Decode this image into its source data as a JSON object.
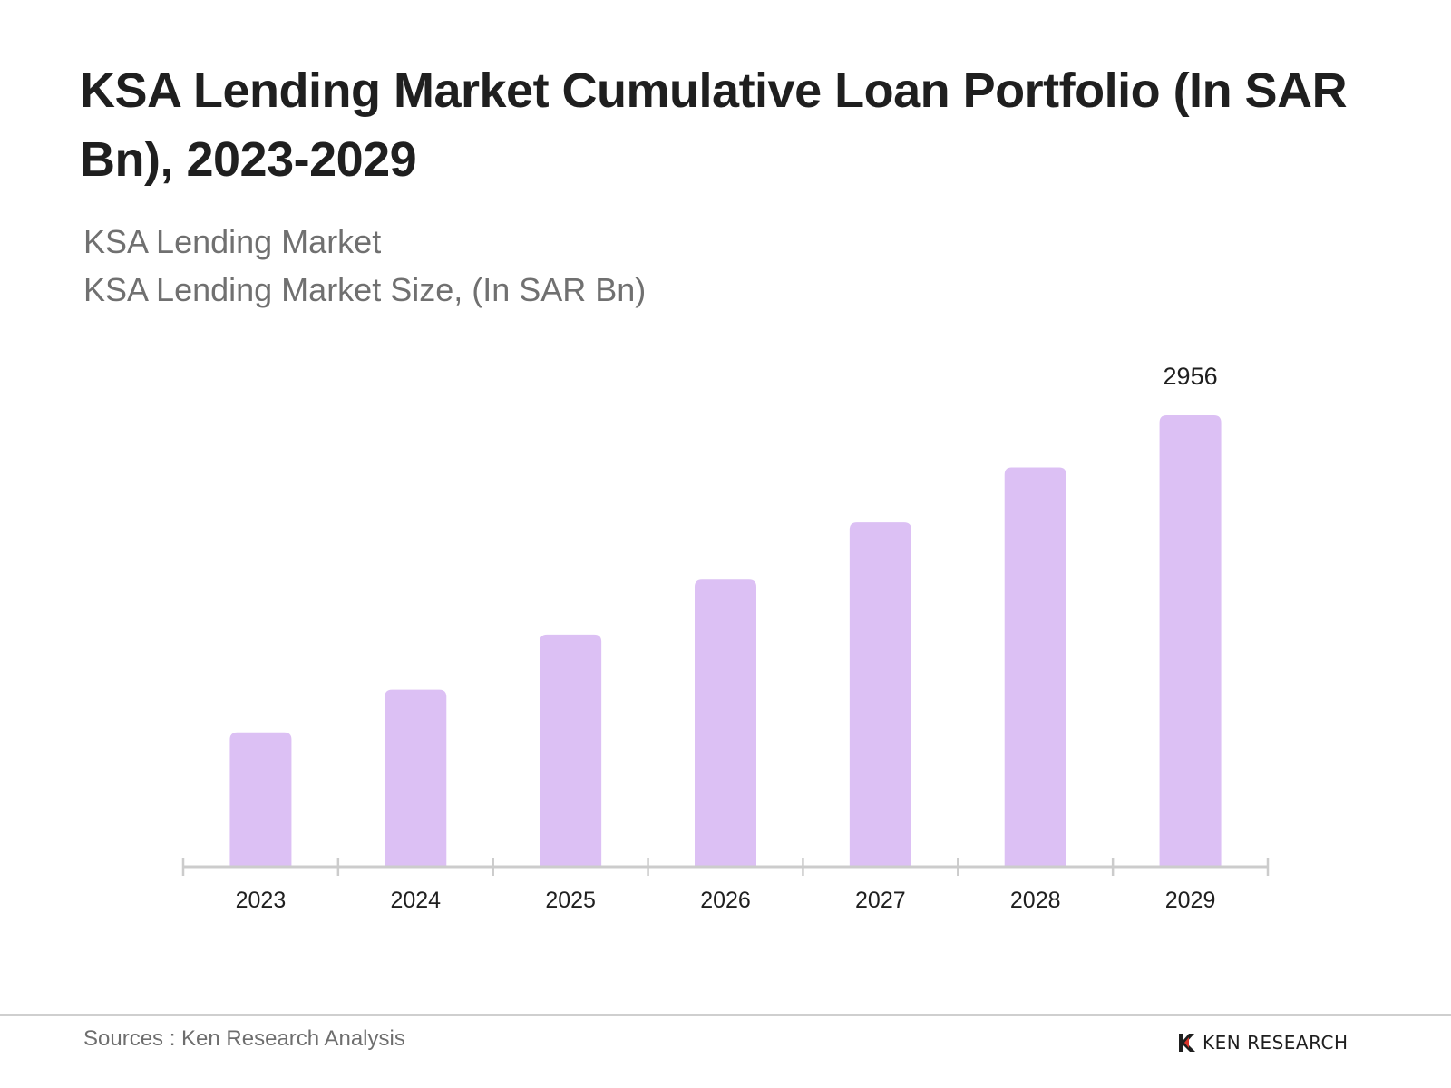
{
  "title": "KSA Lending Market Cumulative Loan Portfolio (In SAR Bn), 2023-2029",
  "subtitle_line1": "KSA Lending Market",
  "subtitle_line2": "KSA Lending Market Size, (In SAR Bn)",
  "source": "Sources : Ken Research Analysis",
  "brand": "KEN RESEARCH",
  "colors": {
    "bar": "#dcc0f4",
    "axis": "#cccccc",
    "text": "#1f1f1f"
  },
  "chart_data": {
    "type": "bar",
    "categories": [
      "2023",
      "2024",
      "2025",
      "2026",
      "2027",
      "2028",
      "2029"
    ],
    "values": [
      880,
      1160,
      1520,
      1880,
      2255,
      2615,
      2956
    ],
    "data_labels": [
      null,
      null,
      null,
      null,
      null,
      null,
      "2956"
    ],
    "xlabel": "",
    "ylabel": "",
    "ylim": [
      0,
      2956
    ],
    "grid": false
  }
}
